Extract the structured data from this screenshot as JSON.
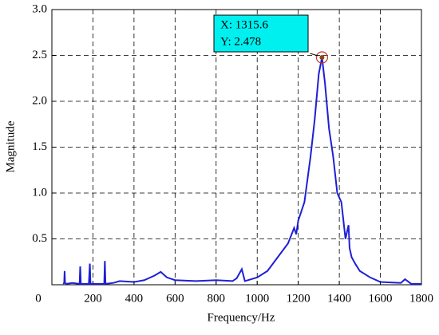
{
  "chart_data": {
    "type": "line",
    "xlabel": "Frequency/Hz",
    "ylabel": "Magnitude",
    "xlim": [
      0,
      1800
    ],
    "xticks": [
      0,
      200,
      400,
      600,
      800,
      1000,
      1200,
      1400,
      1600,
      1800
    ],
    "ylim": [
      0,
      3
    ],
    "yticks": [
      0.5,
      {
        "value": 1,
        "label": "1.0"
      },
      1.5,
      {
        "value": 2,
        "label": "2.0"
      },
      2.5,
      {
        "value": 3,
        "label": "3.0"
      }
    ],
    "grid": true,
    "series": [
      {
        "name": "Magnitude",
        "color": "#1f1fd6",
        "x": [
          55,
          60,
          62,
          64,
          70,
          100,
          135,
          138,
          141,
          180,
          185,
          188,
          255,
          258,
          261,
          300,
          330,
          400,
          450,
          500,
          530,
          560,
          600,
          700,
          800,
          880,
          900,
          925,
          940,
          1000,
          1050,
          1100,
          1150,
          1180,
          1190,
          1200,
          1230,
          1260,
          1280,
          1300,
          1315.6,
          1330,
          1350,
          1370,
          1390,
          1410,
          1430,
          1445,
          1450,
          1460,
          1480,
          1500,
          1550,
          1600,
          1700,
          1720,
          1750,
          1800
        ],
        "values": [
          0.01,
          0.02,
          0.15,
          0.02,
          0.01,
          0.02,
          0.01,
          0.2,
          0.01,
          0.01,
          0.23,
          0.01,
          0.01,
          0.26,
          0.01,
          0.02,
          0.04,
          0.03,
          0.05,
          0.1,
          0.14,
          0.08,
          0.05,
          0.04,
          0.05,
          0.04,
          0.07,
          0.17,
          0.04,
          0.08,
          0.15,
          0.3,
          0.45,
          0.62,
          0.55,
          0.7,
          0.9,
          1.4,
          1.8,
          2.3,
          2.478,
          2.2,
          1.7,
          1.4,
          1.0,
          0.9,
          0.5,
          0.65,
          0.4,
          0.3,
          0.22,
          0.15,
          0.08,
          0.03,
          0.02,
          0.06,
          0.01,
          0.01
        ]
      }
    ],
    "datatip": {
      "index": 40,
      "x_text": "X: 1315.6",
      "y_text": "Y: 2.478"
    }
  }
}
